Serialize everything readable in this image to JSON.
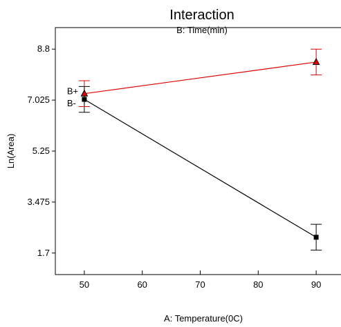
{
  "chart_data": {
    "type": "line",
    "title": "Interaction",
    "subtitle": "B: Time(min)",
    "xlabel": "A: Temperature(0C)",
    "ylabel": "Ln(Area)",
    "xlim": [
      45,
      95
    ],
    "ylim": [
      0.95,
      9.55
    ],
    "xticks": [
      50,
      60,
      70,
      80,
      90
    ],
    "yticks": [
      1.7,
      3.475,
      5.25,
      7.025,
      8.8
    ],
    "ytick_labels": [
      "1.7",
      "3.475",
      "5.25",
      "7.025",
      "8.8"
    ],
    "x": [
      50,
      90
    ],
    "grid": false,
    "series": [
      {
        "name": "B+",
        "color": "#e00000",
        "marker": "triangle",
        "values": [
          7.25,
          8.35
        ],
        "error_low": [
          6.8,
          7.9
        ],
        "error_high": [
          7.7,
          8.8
        ]
      },
      {
        "name": "B-",
        "color": "#000000",
        "marker": "square",
        "values": [
          7.05,
          2.25
        ],
        "error_low": [
          6.6,
          1.8
        ],
        "error_high": [
          7.5,
          2.7
        ]
      }
    ]
  }
}
